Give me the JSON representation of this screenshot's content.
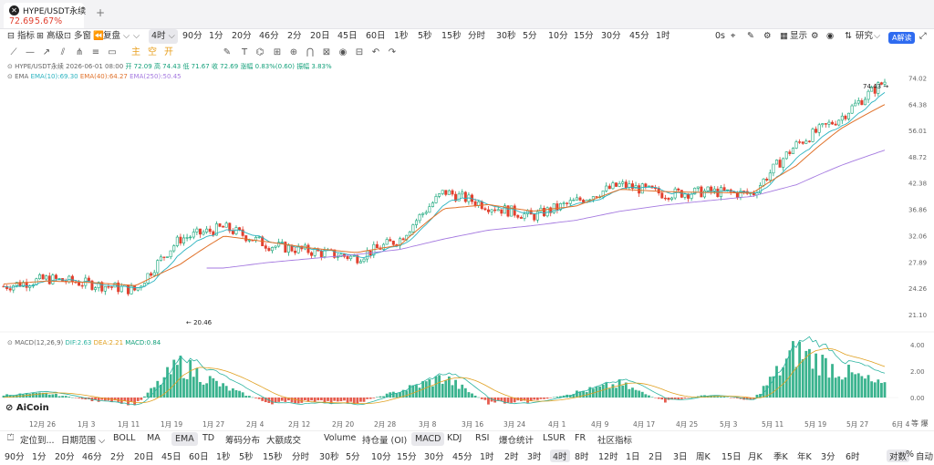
{
  "tab": {
    "title": "HYPE/USDT永续",
    "price": "72.69",
    "change": "5.67%",
    "add": "+"
  },
  "toolbar1": {
    "indicators": "指标",
    "advanced": "高级",
    "multi_window": "多窗",
    "replay": "复盘",
    "interval_selected": "4时",
    "intervals": [
      "90分",
      "1分",
      "20分",
      "46分",
      "2分",
      "20日",
      "45日",
      "60日",
      "1秒",
      "5秒",
      "15秒",
      "分时",
      "30秒",
      "5分",
      "10分",
      "15分",
      "30分",
      "45分",
      "1时"
    ],
    "right": {
      "countdown": "0s",
      "display": "显示",
      "research": "研究",
      "ai": "A解读"
    }
  },
  "toolbar2": {
    "tools": [
      "trend-line-icon",
      "horizontal-line-icon",
      "ray-icon",
      "parallel-channel-icon",
      "pitchfork-icon",
      "fib-icon",
      "rectangle-icon",
      "brush-icon",
      "text-icon",
      "pattern-icon",
      "measure-icon",
      "zoom-icon",
      "magnet-icon",
      "lock-icon",
      "eye-icon",
      "delete-icon",
      "undo-icon",
      "redo-icon"
    ],
    "labels": [
      "主",
      "空",
      "开"
    ]
  },
  "legend": {
    "line1": {
      "symbol": "HYPE/USDT永续",
      "time": "2026-06-01 08:00",
      "open": "开 72.09",
      "high": "高 74.43",
      "low": "低 71.67",
      "close": "收 72.69",
      "change": "涨幅 0.83%(0.60)",
      "amplitude": "振幅 3.83%"
    },
    "line2": {
      "name": "EMA",
      "ema10": "EMA(10):69.30",
      "ema40": "EMA(40):64.27",
      "ema250": "EMA(250):50.45"
    },
    "macd": {
      "name": "MACD(12,26,9)",
      "dif": "DIF:2.63",
      "dea": "DEA:2.21",
      "macd": "MACD:0.84"
    }
  },
  "annotations": {
    "high": "74.43",
    "low": "20.46"
  },
  "price_axis": [
    "74.02",
    "64.38",
    "56.01",
    "48.72",
    "42.38",
    "36.86",
    "32.06",
    "27.89",
    "24.26",
    "21.10"
  ],
  "macd_axis": [
    "4.00",
    "2.00",
    "0.00"
  ],
  "date_axis": [
    "12月 26",
    "1月 3",
    "1月 11",
    "1月 19",
    "1月 27",
    "2月 4",
    "2月 12",
    "2月 20",
    "2月 28",
    "3月 8",
    "3月 16",
    "3月 24",
    "4月 1",
    "4月 9",
    "4月 17",
    "4月 25",
    "5月 3",
    "5月 11",
    "5月 19",
    "5月 27",
    "6月 4"
  ],
  "watermark": "AiCoin",
  "indicator_bar": {
    "locate": "定位到...",
    "date_range": "日期范围",
    "items": [
      "BOLL",
      "MA",
      "EMA",
      "TD",
      "筹码分布",
      "大额成交",
      "Volume",
      "持仓量 (OI)",
      "MACD",
      "KDJ",
      "RSI",
      "爆仓统计",
      "LSUR",
      "FR",
      "社区指标"
    ],
    "active": [
      "EMA",
      "MACD"
    ]
  },
  "timeframe_bar": {
    "items": [
      "90分",
      "1分",
      "20分",
      "46分",
      "2分",
      "20日",
      "45日",
      "60日",
      "1秒",
      "5秒",
      "15秒",
      "分时",
      "30秒",
      "5分",
      "10分",
      "15分",
      "30分",
      "45分",
      "1时",
      "2时",
      "3时",
      "4时",
      "8时",
      "12时",
      "1日",
      "2日",
      "3日",
      "周K",
      "15日",
      "月K",
      "季K",
      "年K",
      "3分",
      "6时"
    ],
    "active": "4时",
    "right": {
      "log": "对数",
      "percent": "%",
      "auto": "自动"
    }
  },
  "chart_data": {
    "type": "candlestick",
    "title": "HYPE/USDT永续 4时",
    "ylim": [
      20.0,
      76.0
    ],
    "y_scale": "log",
    "x": [
      "12-26",
      "1-3",
      "1-11",
      "1-19",
      "1-27",
      "2-4",
      "2-12",
      "2-20",
      "2-28",
      "3-8",
      "3-16",
      "3-24",
      "4-1",
      "4-9",
      "4-17",
      "4-25",
      "5-3",
      "5-11",
      "5-19",
      "5-27",
      "6-1"
    ],
    "series": [
      {
        "name": "close",
        "values": [
          24.5,
          25.5,
          24.8,
          24.0,
          31.5,
          33.5,
          30.5,
          29.5,
          28.5,
          31.5,
          40.5,
          37.5,
          35.5,
          38.5,
          42.0,
          40.0,
          40.5,
          40.0,
          52.0,
          60.0,
          72.69
        ]
      },
      {
        "name": "EMA(40)",
        "values": [
          24.8,
          25.2,
          25.0,
          24.6,
          27.5,
          32.0,
          31.0,
          30.0,
          29.3,
          30.5,
          37.0,
          37.8,
          36.5,
          37.5,
          41.0,
          40.5,
          40.3,
          40.2,
          46.5,
          56.5,
          64.27
        ]
      },
      {
        "name": "EMA(250)",
        "values": [
          null,
          null,
          null,
          null,
          null,
          27.0,
          27.8,
          28.4,
          29.0,
          29.8,
          31.5,
          33.0,
          33.8,
          34.8,
          36.5,
          37.7,
          38.6,
          39.5,
          42.0,
          46.5,
          50.45
        ]
      },
      {
        "name": "MACD",
        "values": [
          0.2,
          0.3,
          -0.2,
          -0.5,
          2.5,
          0.8,
          -0.4,
          -0.3,
          -0.4,
          0.5,
          1.5,
          -0.4,
          -0.3,
          0.4,
          1.0,
          -0.3,
          0.2,
          -0.2,
          3.5,
          2.0,
          0.84
        ]
      }
    ],
    "annotations": {
      "high": 74.43,
      "low": 20.46
    },
    "macd_ylim": [
      -1.5,
      4.5
    ]
  }
}
